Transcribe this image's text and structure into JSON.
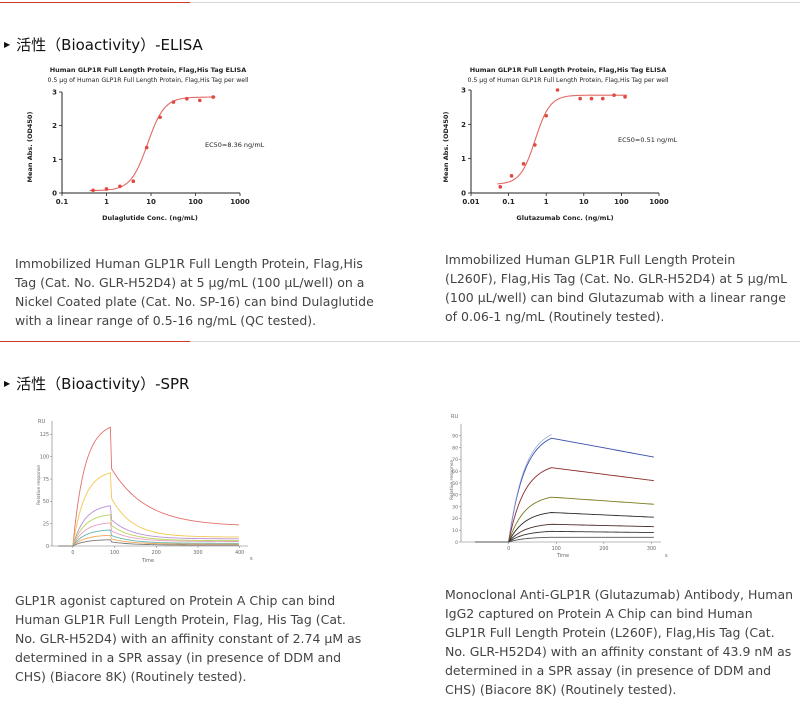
{
  "sections": [
    {
      "title": "活性（Bioactivity）-ELISA",
      "charts": [
        {
          "title": "Human GLP1R Full Length Protein, Flag,His Tag ELISA",
          "subtitle": "0.5 μg of Human GLP1R Full Length Protein, Flag,His Tag per well",
          "xlabel": "Dulaglutide Conc. (ng/mL)",
          "ylabel": "Mean Abs. (OD450)",
          "annotation": "EC50=8.36 ng/mL",
          "description": "Immobilized Human GLP1R Full Length Protein, Flag,His Tag (Cat. No. GLR-H52D4) at 5 μg/mL (100 μL/well) on a Nickel Coated plate (Cat. No. SP-16) can bind Dulaglutide with a linear range of 0.5-16 ng/mL (QC tested)."
        },
        {
          "title": "Human GLP1R Full Length Protein, Flag,His Tag ELISA",
          "subtitle": "0.5 μg of Human GLP1R Full Length Protein, Flag,His Tag per well",
          "xlabel": "Glutazumab Conc. (ng/mL)",
          "ylabel": "Mean Abs. (OD450)",
          "annotation": "EC50=0.51 ng/mL",
          "description": "Immobilized Human GLP1R Full Length Protein (L260F), Flag,His Tag (Cat. No. GLR-H52D4) at 5 μg/mL (100 μL/well) can bind Glutazumab with a linear range of 0.06-1 ng/mL (Routinely tested)."
        }
      ]
    },
    {
      "title": "活性（Bioactivity）-SPR",
      "charts": [
        {
          "yunit": "RU",
          "xunit": "s",
          "xlabel": "Time",
          "ylabel": "Relative response",
          "description": "GLP1R agonist captured on Protein A Chip can bind Human GLP1R Full Length Protein, Flag, His Tag (Cat. No. GLR-H52D4) with an affinity constant of 2.74 μM as determined in a SPR assay (in presence of DDM and CHS) (Biacore 8K) (Routinely tested)."
        },
        {
          "yunit": "RU",
          "xunit": "s",
          "xlabel": "Time",
          "ylabel": "Relative response",
          "description": "Monoclonal Anti-GLP1R (Glutazumab) Antibody, Human IgG2 captured on Protein A Chip can bind Human GLP1R Full Length Protein (L260F), Flag,His Tag (Cat. No. GLR-H52D4) with an affinity constant of 43.9 nM as determined in a SPR assay (in presence of DDM and CHS) (Biacore 8K) (Routinely tested)."
        }
      ]
    }
  ],
  "chart_data": [
    {
      "type": "scatter",
      "title": "Human GLP1R Full Length Protein, Flag,His Tag ELISA",
      "xscale": "log",
      "xlim": [
        0.1,
        1000
      ],
      "ylim": [
        0,
        3
      ],
      "xticks": [
        "0.1",
        "1",
        "10",
        "100",
        "1000"
      ],
      "yticks": [
        "0",
        "1",
        "2",
        "3"
      ],
      "x": [
        0.5,
        1,
        2,
        4,
        8,
        16,
        32,
        64,
        125,
        250
      ],
      "y": [
        0.08,
        0.12,
        0.2,
        0.35,
        1.35,
        2.25,
        2.7,
        2.8,
        2.75,
        2.85
      ],
      "fit": {
        "bottom": 0.07,
        "top": 2.85,
        "ec50": 8.36,
        "hill": 2.3
      }
    },
    {
      "type": "scatter",
      "title": "Human GLP1R Full Length Protein, Flag,His Tag ELISA",
      "xscale": "log",
      "xlim": [
        0.01,
        1000
      ],
      "ylim": [
        0,
        3
      ],
      "xticks": [
        "0.01",
        "0.1",
        "1",
        "10",
        "100",
        "1000"
      ],
      "yticks": [
        "0",
        "1",
        "2",
        "3"
      ],
      "x": [
        0.06,
        0.12,
        0.25,
        0.5,
        1,
        2,
        8,
        16,
        32,
        64,
        125
      ],
      "y": [
        0.18,
        0.5,
        0.85,
        1.4,
        2.25,
        3.0,
        2.75,
        2.75,
        2.75,
        2.85,
        2.8
      ],
      "fit": {
        "bottom": 0.25,
        "top": 2.85,
        "ec50": 0.51,
        "hill": 2.2
      }
    },
    {
      "type": "line",
      "xlim": [
        -50,
        420
      ],
      "ylim": [
        0,
        140
      ],
      "xticks": [
        "0",
        "100",
        "200",
        "300",
        "400"
      ],
      "yticks": [
        "0",
        "25",
        "50",
        "75",
        "100",
        "125"
      ],
      "assoc_end": 90,
      "series": [
        {
          "color": "#e3706b",
          "peak": 133,
          "plateau": 22,
          "kd": 0.012
        },
        {
          "color": "#f0c850",
          "peak": 82,
          "plateau": 10,
          "kd": 0.02
        },
        {
          "color": "#b98fd6",
          "peak": 45,
          "plateau": 8,
          "kd": 0.02
        },
        {
          "color": "#b8d35a",
          "peak": 35,
          "plateau": 6,
          "kd": 0.02
        },
        {
          "color": "#e9a0c0",
          "peak": 26,
          "plateau": 5,
          "kd": 0.02
        },
        {
          "color": "#5fb6b0",
          "peak": 18,
          "plateau": 3,
          "kd": 0.02
        },
        {
          "color": "#f2a65a",
          "peak": 12,
          "plateau": 2,
          "kd": 0.02
        },
        {
          "color": "#7a7a7a",
          "peak": 7,
          "plateau": 1,
          "kd": 0.02
        }
      ]
    },
    {
      "type": "line",
      "xlim": [
        -100,
        320
      ],
      "ylim": [
        0,
        100
      ],
      "xticks": [
        "0",
        "100",
        "200",
        "300"
      ],
      "yticks": [
        "0",
        "10",
        "20",
        "30",
        "40",
        "50",
        "60",
        "70",
        "80",
        "90"
      ],
      "assoc_end": 90,
      "series": [
        {
          "color": "#3b4fa8",
          "peak": 88,
          "end": 72
        },
        {
          "color": "#8a2a2a",
          "peak": 63,
          "end": 52
        },
        {
          "color": "#7a7a20",
          "peak": 38,
          "end": 32
        },
        {
          "color": "#2a2a2a",
          "peak": 25,
          "end": 21
        },
        {
          "color": "#4a2a2a",
          "peak": 15,
          "end": 13
        },
        {
          "color": "#333333",
          "peak": 9,
          "end": 8
        },
        {
          "color": "#555555",
          "peak": 4,
          "end": 4
        }
      ]
    }
  ]
}
